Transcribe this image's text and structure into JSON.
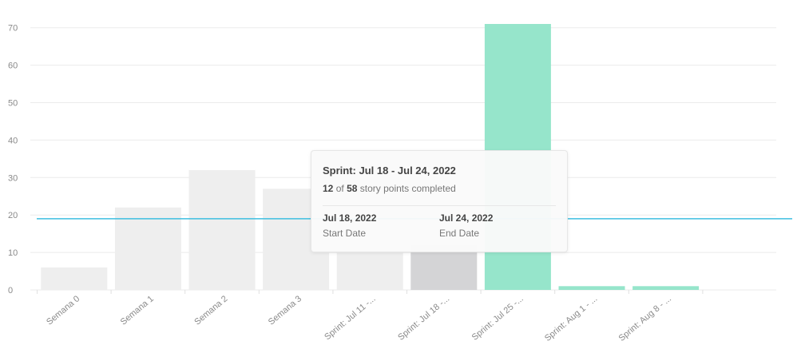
{
  "chart_data": {
    "type": "bar",
    "categories": [
      "Semana 0",
      "Semana 1",
      "Semana 2",
      "Semana 3",
      "Sprint: Jul 11 -...",
      "Sprint: Jul 18 -...",
      "Sprint: Jul 25 -...",
      "Sprint: Aug 1 - ...",
      "Sprint: Aug 8 - ..."
    ],
    "values": [
      6,
      22,
      32,
      27,
      12,
      12,
      71,
      1,
      1
    ],
    "average_line": 19,
    "ylim": [
      0,
      71
    ],
    "yticks": [
      0,
      10,
      20,
      30,
      40,
      50,
      60,
      70
    ],
    "bar_colors": [
      "#eeeeee",
      "#eeeeee",
      "#eeeeee",
      "#eeeeee",
      "#eeeeee",
      "#d4d4d6",
      "#96e5cb",
      "#96e5cb",
      "#96e5cb"
    ],
    "average_color": "#3dbfe0",
    "grid": true
  },
  "tooltip": {
    "title": "Sprint: Jul 18 - Jul 24, 2022",
    "completed": "12",
    "of_text": "of",
    "total": "58",
    "suffix": "story points completed",
    "start_date": "Jul 18, 2022",
    "start_label": "Start Date",
    "end_date": "Jul 24, 2022",
    "end_label": "End Date"
  }
}
